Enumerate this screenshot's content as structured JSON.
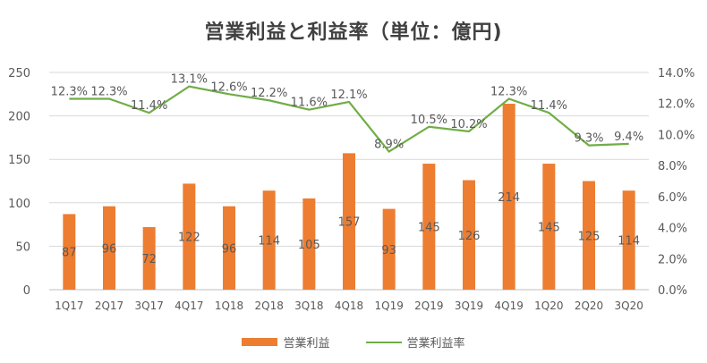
{
  "chart_data": {
    "type": "bar+line",
    "title": "営業利益と利益率（単位：億円)",
    "categories": [
      "1Q17",
      "2Q17",
      "3Q17",
      "4Q17",
      "1Q18",
      "2Q18",
      "3Q18",
      "4Q18",
      "1Q19",
      "2Q19",
      "3Q19",
      "4Q19",
      "1Q20",
      "2Q20",
      "3Q20"
    ],
    "series": [
      {
        "name": "営業利益",
        "type": "bar",
        "axis": "left",
        "color": "#ED7D31",
        "values": [
          87,
          96,
          72,
          122,
          96,
          114,
          105,
          157,
          93,
          145,
          126,
          214,
          145,
          125,
          114
        ]
      },
      {
        "name": "営業利益率",
        "type": "line",
        "axis": "right",
        "color": "#70AD47",
        "values": [
          12.3,
          12.3,
          11.4,
          13.1,
          12.6,
          12.2,
          11.6,
          12.1,
          8.9,
          10.5,
          10.2,
          12.3,
          11.4,
          9.3,
          9.4
        ]
      }
    ],
    "left_axis": {
      "ylim": [
        0,
        250
      ],
      "ticks": [
        "0",
        "50",
        "100",
        "150",
        "200",
        "250"
      ]
    },
    "right_axis": {
      "ylim": [
        0,
        14
      ],
      "ticks": [
        "0.0%",
        "2.0%",
        "4.0%",
        "6.0%",
        "8.0%",
        "10.0%",
        "12.0%",
        "14.0%"
      ]
    },
    "grid": true,
    "legend": "bottom"
  }
}
